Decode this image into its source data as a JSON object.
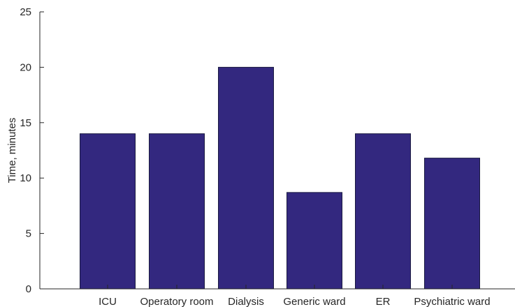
{
  "chart_data": {
    "type": "bar",
    "title": "",
    "xlabel": "",
    "ylabel": "Time, minutes",
    "categories": [
      "ICU",
      "Operatory room",
      "Dialysis",
      "Generic ward",
      "ER",
      "Psychiatric ward"
    ],
    "values": [
      14,
      14,
      20,
      8.7,
      14,
      11.8
    ],
    "ylim": [
      0,
      25
    ],
    "yticks": [
      "0",
      "5",
      "10",
      "15",
      "20",
      "25"
    ],
    "grid": false,
    "legend": "none",
    "colors": {
      "bar_fill": "#33287f",
      "bar_edge": "#1a1a40",
      "axis": "#262626"
    }
  }
}
